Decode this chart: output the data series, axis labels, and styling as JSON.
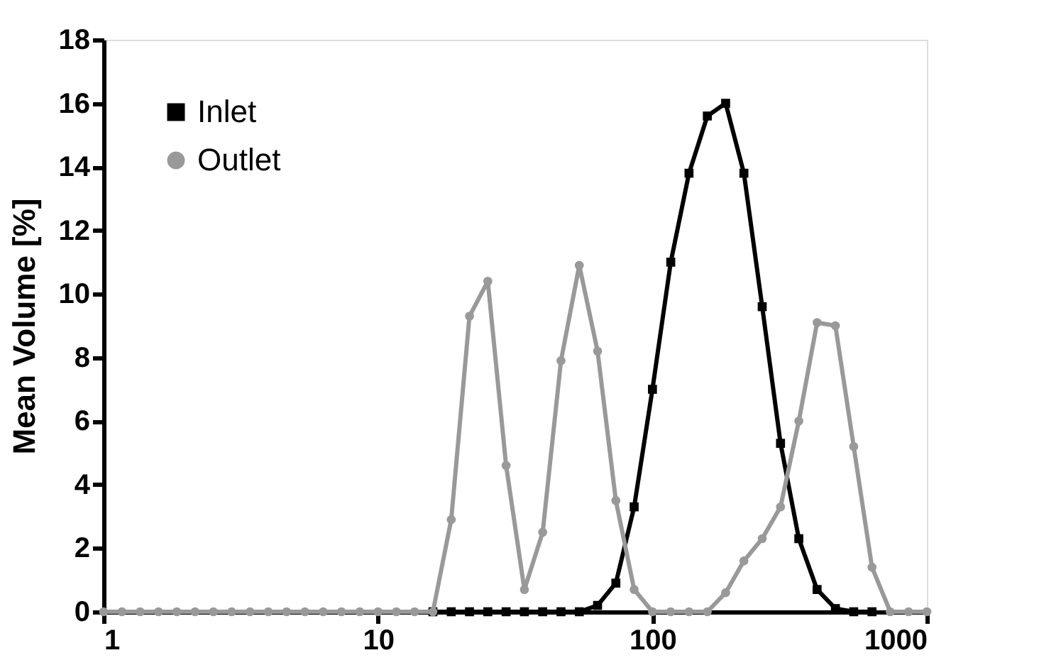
{
  "chart_data": {
    "type": "line",
    "ylabel": "Mean Volume [%]",
    "log": "x",
    "xlim": [
      1,
      1000
    ],
    "xticks": [
      1,
      10,
      100,
      1000
    ],
    "ylim": [
      0,
      18
    ],
    "yticks": [
      0,
      2,
      4,
      6,
      8,
      10,
      12,
      14,
      16,
      18
    ],
    "grid": false,
    "legend": "top left",
    "line_style": "solid",
    "x": [
      1,
      1.166,
      1.359,
      1.585,
      1.848,
      2.154,
      2.512,
      2.929,
      3.415,
      3.981,
      4.642,
      5.412,
      6.31,
      7.356,
      8.577,
      10,
      11.66,
      13.59,
      15.85,
      18.48,
      21.54,
      25.12,
      29.29,
      34.15,
      39.81,
      46.42,
      54.12,
      63.1,
      73.56,
      85.77,
      100,
      116.6,
      135.9,
      158.5,
      184.8,
      215.4,
      251.2,
      292.9,
      341.5,
      398.1,
      464.2,
      541.2,
      631,
      735.6,
      857.7,
      1000
    ],
    "series": [
      {
        "name": "Inlet",
        "color": "#000000",
        "marker": "square",
        "values": [
          null,
          null,
          null,
          null,
          null,
          null,
          null,
          null,
          null,
          null,
          null,
          null,
          null,
          null,
          null,
          null,
          null,
          null,
          0,
          0,
          0,
          0,
          0,
          0,
          0,
          0,
          0,
          0.2,
          0.9,
          3.3,
          7.0,
          11.0,
          13.8,
          15.6,
          16.0,
          13.8,
          9.6,
          5.3,
          2.3,
          0.7,
          0.1,
          0,
          0,
          null,
          null,
          null
        ]
      },
      {
        "name": "Outlet",
        "color": "#999999",
        "marker": "circle",
        "values": [
          0,
          0,
          0,
          0,
          0,
          0,
          0,
          0,
          0,
          0,
          0,
          0,
          0,
          0,
          0,
          0,
          0,
          0,
          0,
          2.9,
          9.3,
          10.4,
          4.6,
          0.7,
          2.5,
          7.9,
          10.9,
          8.2,
          3.5,
          0.7,
          0,
          0,
          0,
          0,
          0.6,
          1.6,
          2.3,
          3.3,
          6.0,
          9.1,
          9.0,
          5.2,
          1.4,
          0,
          0,
          0
        ]
      }
    ]
  }
}
